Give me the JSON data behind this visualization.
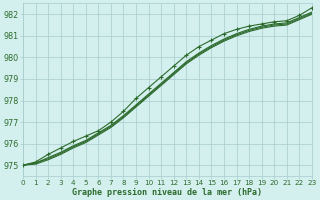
{
  "xlabel": "Graphe pression niveau de la mer (hPa)",
  "bg_color": "#d4f0ee",
  "grid_color": "#a8cccc",
  "line_color": "#2d6b2d",
  "xlim": [
    0,
    23
  ],
  "ylim": [
    974.5,
    982.5
  ],
  "yticks": [
    975,
    976,
    977,
    978,
    979,
    980,
    981,
    982
  ],
  "xticks": [
    0,
    1,
    2,
    3,
    4,
    5,
    6,
    7,
    8,
    9,
    10,
    11,
    12,
    13,
    14,
    15,
    16,
    17,
    18,
    19,
    20,
    21,
    22,
    23
  ],
  "series": [
    [
      975.0,
      975.15,
      975.5,
      975.8,
      976.1,
      976.35,
      976.6,
      977.0,
      977.5,
      978.1,
      978.6,
      979.1,
      979.6,
      980.1,
      980.5,
      980.8,
      981.1,
      981.3,
      981.45,
      981.55,
      981.65,
      981.7,
      981.95,
      982.3
    ],
    [
      975.0,
      975.1,
      975.35,
      975.6,
      975.9,
      976.15,
      976.5,
      976.85,
      977.3,
      977.8,
      978.3,
      978.8,
      979.3,
      979.8,
      980.2,
      980.55,
      980.85,
      981.1,
      981.3,
      981.45,
      981.55,
      981.6,
      981.85,
      982.1
    ],
    [
      975.0,
      975.1,
      975.3,
      975.55,
      975.85,
      976.1,
      976.45,
      976.8,
      977.25,
      977.75,
      978.25,
      978.75,
      979.25,
      979.75,
      980.15,
      980.5,
      980.8,
      981.05,
      981.25,
      981.4,
      981.5,
      981.55,
      981.8,
      982.05
    ],
    [
      975.0,
      975.05,
      975.25,
      975.5,
      975.8,
      976.05,
      976.4,
      976.75,
      977.2,
      977.7,
      978.2,
      978.7,
      979.2,
      979.7,
      980.1,
      980.45,
      980.75,
      981.0,
      981.2,
      981.35,
      981.45,
      981.5,
      981.75,
      982.0
    ]
  ],
  "marker_series": 0
}
